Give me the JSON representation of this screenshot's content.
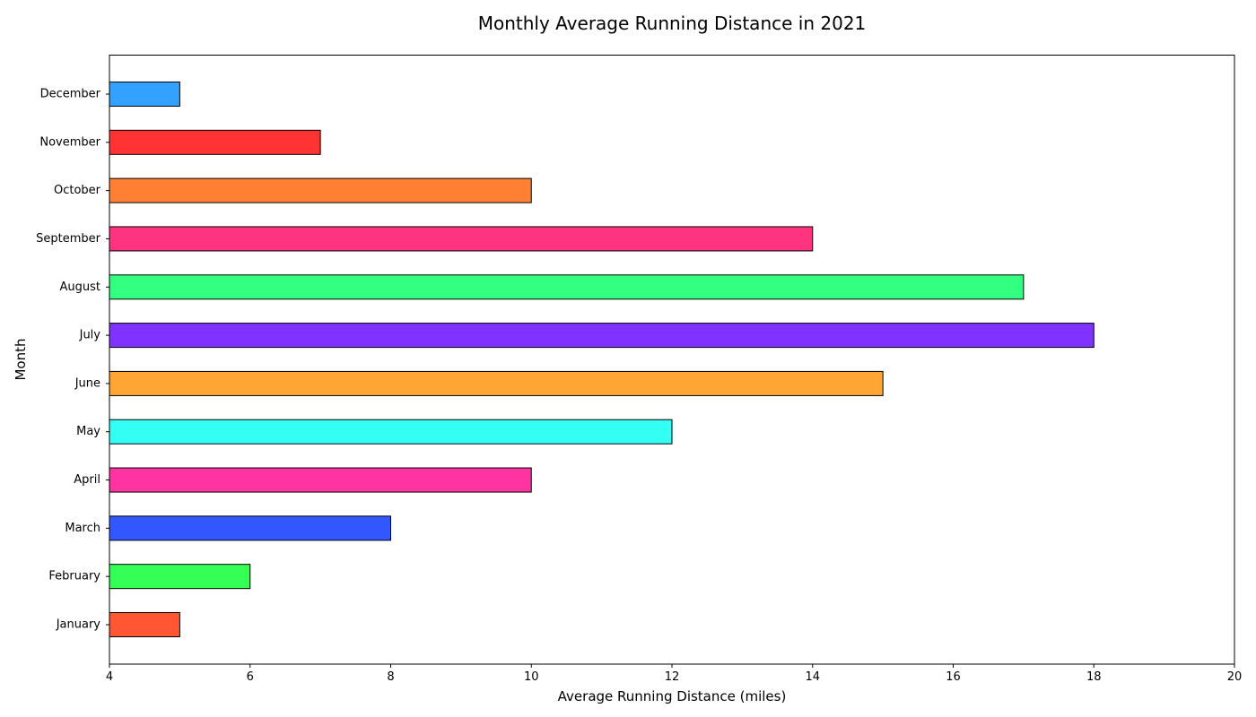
{
  "chart_data": {
    "type": "bar",
    "orientation": "horizontal",
    "title": "Monthly Average Running Distance in 2021",
    "xlabel": "Average Running Distance (miles)",
    "ylabel": "Month",
    "xlim": [
      4,
      20
    ],
    "xticks": [
      4,
      6,
      8,
      10,
      12,
      14,
      16,
      18,
      20
    ],
    "grid": false,
    "legend": null,
    "categories": [
      "January",
      "February",
      "March",
      "April",
      "May",
      "June",
      "July",
      "August",
      "September",
      "October",
      "November",
      "December"
    ],
    "values": [
      5,
      6,
      8,
      10,
      12,
      15,
      18,
      17,
      14,
      10,
      7,
      5
    ],
    "colors": [
      "#ff5733",
      "#33ff57",
      "#3357ff",
      "#ff33a1",
      "#33fff5",
      "#ffa533",
      "#8033ff",
      "#33ff80",
      "#ff3380",
      "#ff8033",
      "#ff3333",
      "#33a1ff"
    ],
    "edge_color": "#000000"
  }
}
